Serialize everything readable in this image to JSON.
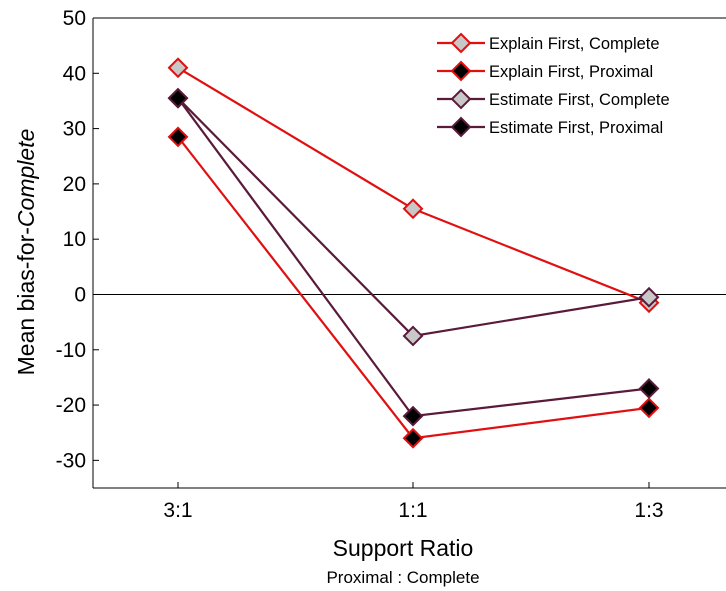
{
  "chart_data": {
    "type": "line",
    "categories": [
      "3:1",
      "1:1",
      "1:3"
    ],
    "ylim": [
      -35,
      50
    ],
    "yticks": [
      -30,
      -20,
      -10,
      0,
      10,
      20,
      30,
      40,
      50
    ],
    "xlabel": "Support Ratio",
    "xsublabel": "Proximal : Complete",
    "ylabel_prefix": "Mean bias-for-",
    "ylabel_italic": "Complete",
    "legend_position": "top-right",
    "zero_line": true,
    "series": [
      {
        "name": "Explain First, Complete",
        "values": [
          41,
          15.5,
          -1.5
        ],
        "line_color": "#e01010",
        "marker_fill": "#c8c8c8",
        "marker_edge": "#e01010"
      },
      {
        "name": "Explain First, Proximal",
        "values": [
          28.5,
          -26,
          -20.5
        ],
        "line_color": "#e01010",
        "marker_fill": "#000000",
        "marker_edge": "#e01010"
      },
      {
        "name": "Estimate First, Complete",
        "values": [
          35.5,
          -7.5,
          -0.5
        ],
        "line_color": "#5a1a3a",
        "marker_fill": "#c8c8c8",
        "marker_edge": "#5a1a3a"
      },
      {
        "name": "Estimate First, Proximal",
        "values": [
          35.5,
          -22,
          -17
        ],
        "line_color": "#5a1a3a",
        "marker_fill": "#000000",
        "marker_edge": "#5a1a3a"
      }
    ]
  }
}
